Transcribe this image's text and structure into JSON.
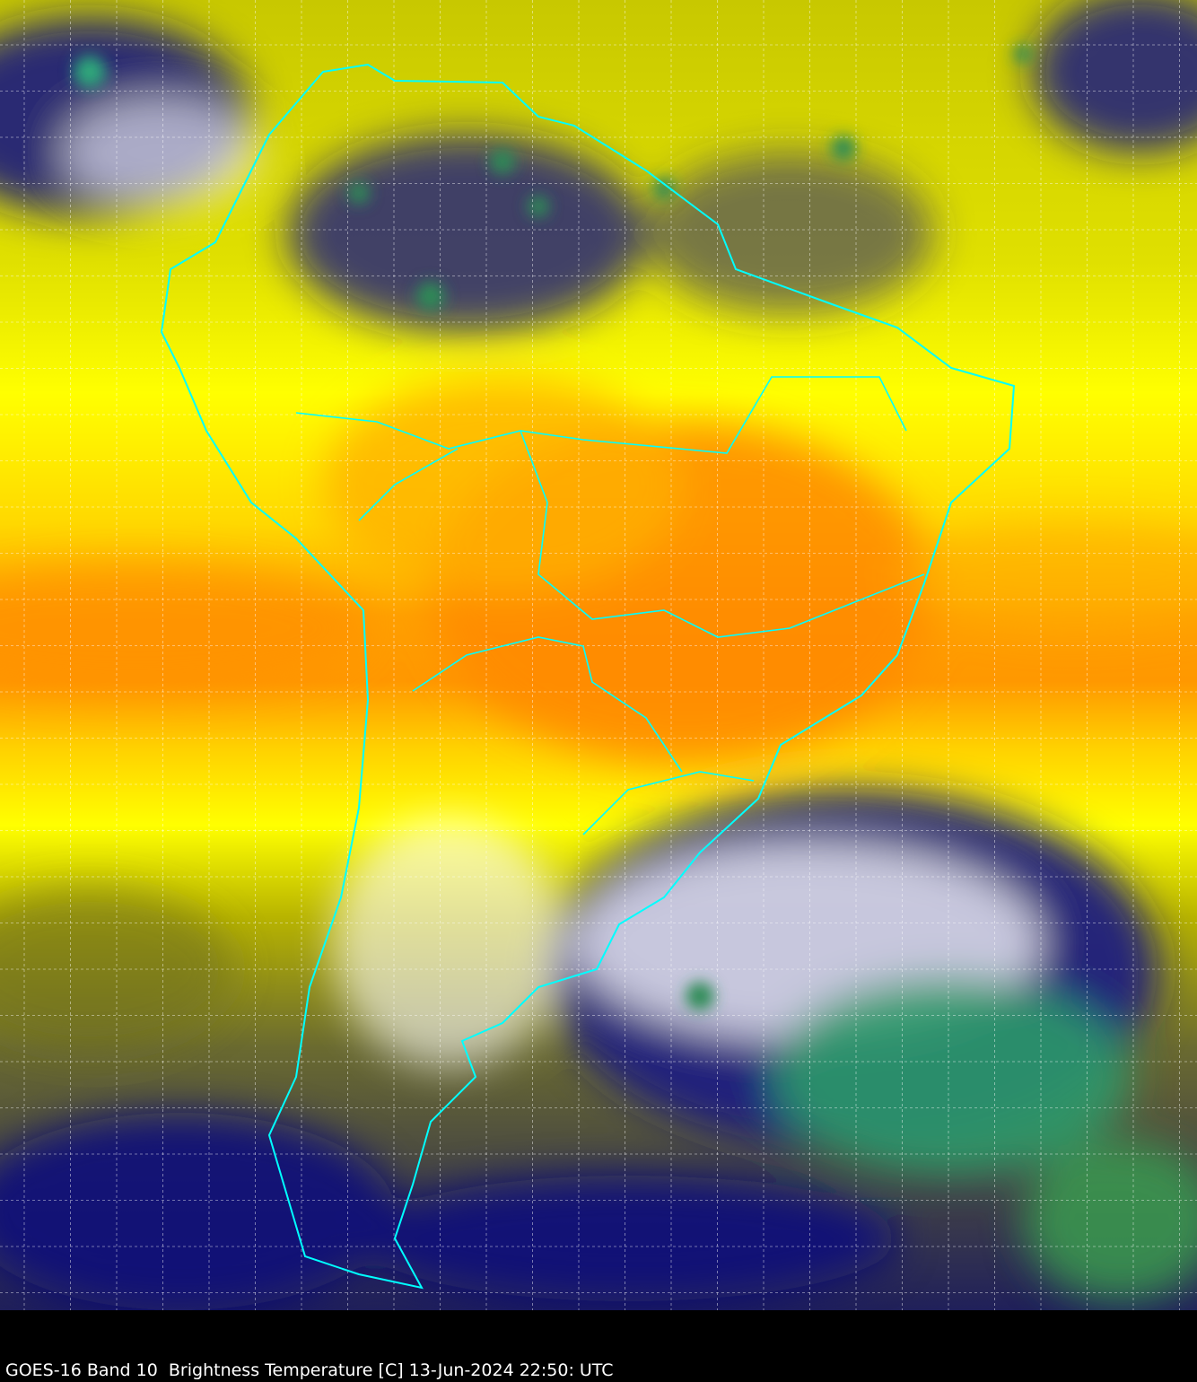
{
  "caption": "GOES-16 Band 10  Brightness Temperature [C] 13-Jun-2024 22:50: UTC",
  "map": {
    "satellite": "GOES-16",
    "band": "Band 10",
    "variable": "Brightness Temperature [C]",
    "date": "13-Jun-2024",
    "time": "22:50 UTC",
    "colors": {
      "warm": "#ff8c00",
      "mid": "#ffff00",
      "cool": "#b5b800",
      "cold_cloud": "#10137a",
      "colder_cloud": "#ffffff",
      "coldest_cloud": "#2e8b57",
      "coastline": "#00ffff",
      "gridline": "#ffffff",
      "background": "#000000"
    }
  }
}
